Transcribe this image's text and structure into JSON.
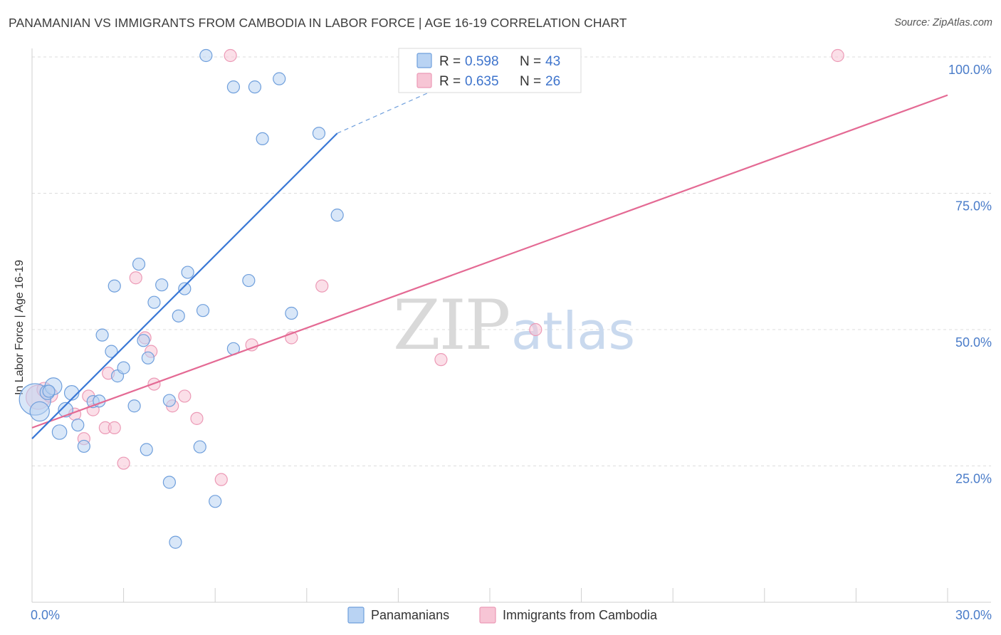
{
  "title": "PANAMANIAN VS IMMIGRANTS FROM CAMBODIA IN LABOR FORCE | AGE 16-19 CORRELATION CHART",
  "source": "Source: ZipAtlas.com",
  "watermark": {
    "zip": "ZIP",
    "atlas": "atlas"
  },
  "colors": {
    "blue": "#3a78d6",
    "blue_fill": "#b9d3f3",
    "blue_stroke": "#6f9fdc",
    "pink": "#e46a94",
    "pink_fill": "#f7c5d5",
    "pink_stroke": "#ec9ab6",
    "grid": "#dddddd",
    "axis_text": "#4a7cc9"
  },
  "stats_box": [
    {
      "r_label": "R =",
      "r_value": "0.598",
      "n_label": "N =",
      "n_value": "43",
      "color": "blue"
    },
    {
      "r_label": "R =",
      "r_value": "0.635",
      "n_label": "N =",
      "n_value": "26",
      "color": "pink"
    }
  ],
  "chart_data": {
    "type": "scatter",
    "title": "PANAMANIAN VS IMMIGRANTS FROM CAMBODIA IN LABOR FORCE | AGE 16-19 CORRELATION CHART",
    "xlabel": "",
    "ylabel": "In Labor Force | Age 16-19",
    "xlim": [
      0,
      30
    ],
    "ylim": [
      0,
      100
    ],
    "x_tick_labels": [
      "0.0%",
      "30.0%"
    ],
    "y_ticks": [
      25,
      50,
      75,
      100
    ],
    "y_tick_labels": [
      "25.0%",
      "50.0%",
      "75.0%",
      "100.0%"
    ],
    "grid": true,
    "legend_position": "bottom",
    "series": [
      {
        "name": "Panamanians",
        "color": "blue",
        "r": 0.598,
        "n": 43,
        "points": [
          [
            0.1,
            37.2,
            26
          ],
          [
            0.25,
            35.0,
            16
          ],
          [
            0.5,
            38.5,
            12
          ],
          [
            0.7,
            39.6,
            14
          ],
          [
            0.9,
            31.2,
            12
          ],
          [
            0.55,
            38.7,
            10
          ],
          [
            1.1,
            35.3,
            12
          ],
          [
            1.3,
            38.4,
            12
          ],
          [
            1.5,
            32.5,
            10
          ],
          [
            1.7,
            28.6,
            10
          ],
          [
            2.0,
            36.8,
            10
          ],
          [
            2.2,
            36.9,
            10
          ],
          [
            2.3,
            49.0,
            10
          ],
          [
            2.6,
            46.0,
            10
          ],
          [
            2.7,
            58.0,
            10
          ],
          [
            2.8,
            41.5,
            10
          ],
          [
            3.0,
            43.0,
            10
          ],
          [
            3.35,
            36.0,
            10
          ],
          [
            3.5,
            62.0,
            10
          ],
          [
            3.65,
            48.0,
            10
          ],
          [
            3.75,
            28.0,
            10
          ],
          [
            3.8,
            44.8,
            10
          ],
          [
            4.0,
            55.0,
            10
          ],
          [
            4.25,
            58.2,
            10
          ],
          [
            4.5,
            37.0,
            10
          ],
          [
            4.5,
            22.0,
            10
          ],
          [
            4.7,
            11.0,
            10
          ],
          [
            4.8,
            52.5,
            10
          ],
          [
            5.1,
            60.5,
            10
          ],
          [
            5.0,
            57.5,
            10
          ],
          [
            5.5,
            28.5,
            10
          ],
          [
            5.6,
            53.5,
            10
          ],
          [
            5.7,
            102.0,
            10
          ],
          [
            6.0,
            18.5,
            10
          ],
          [
            6.6,
            94.5,
            10
          ],
          [
            6.6,
            46.5,
            10
          ],
          [
            7.1,
            59.0,
            10
          ],
          [
            7.3,
            94.5,
            10
          ],
          [
            7.55,
            85.0,
            10
          ],
          [
            8.1,
            96.0,
            10
          ],
          [
            8.5,
            53.0,
            10
          ],
          [
            9.4,
            86.0,
            10
          ],
          [
            10.0,
            71.0,
            10
          ]
        ],
        "trend": {
          "x0": 0.0,
          "y0": 30.0,
          "x1": 10.0,
          "y1": 86.0,
          "dashed_to_x": 13.0,
          "dashed_to_y": 103.0
        }
      },
      {
        "name": "Immigrants from Cambodia",
        "color": "pink",
        "r": 0.635,
        "n": 26,
        "points": [
          [
            0.2,
            37.6,
            20
          ],
          [
            0.6,
            38.0,
            12
          ],
          [
            1.4,
            34.5,
            10
          ],
          [
            1.7,
            30.0,
            10
          ],
          [
            1.85,
            37.8,
            10
          ],
          [
            2.0,
            35.3,
            10
          ],
          [
            2.4,
            32.0,
            10
          ],
          [
            2.5,
            42.0,
            10
          ],
          [
            2.7,
            32.0,
            10
          ],
          [
            3.0,
            25.5,
            10
          ],
          [
            3.4,
            59.5,
            10
          ],
          [
            3.7,
            48.5,
            10
          ],
          [
            3.9,
            46.0,
            10
          ],
          [
            4.0,
            40.0,
            10
          ],
          [
            4.6,
            36.0,
            10
          ],
          [
            5.0,
            37.8,
            10
          ],
          [
            5.4,
            33.7,
            10
          ],
          [
            6.2,
            22.5,
            10
          ],
          [
            6.5,
            101.5,
            10
          ],
          [
            7.2,
            47.2,
            10
          ],
          [
            8.5,
            48.5,
            10
          ],
          [
            9.5,
            58.0,
            10
          ],
          [
            13.4,
            44.5,
            10
          ],
          [
            16.5,
            50.0,
            10
          ],
          [
            26.4,
            102.0,
            10
          ],
          [
            0.4,
            39.0,
            12
          ]
        ],
        "trend": {
          "x0": 0.0,
          "y0": 32.0,
          "x1": 30.0,
          "y1": 93.0
        }
      }
    ]
  },
  "legend": [
    {
      "label": "Panamanians",
      "color": "blue"
    },
    {
      "label": "Immigrants from Cambodia",
      "color": "pink"
    }
  ]
}
